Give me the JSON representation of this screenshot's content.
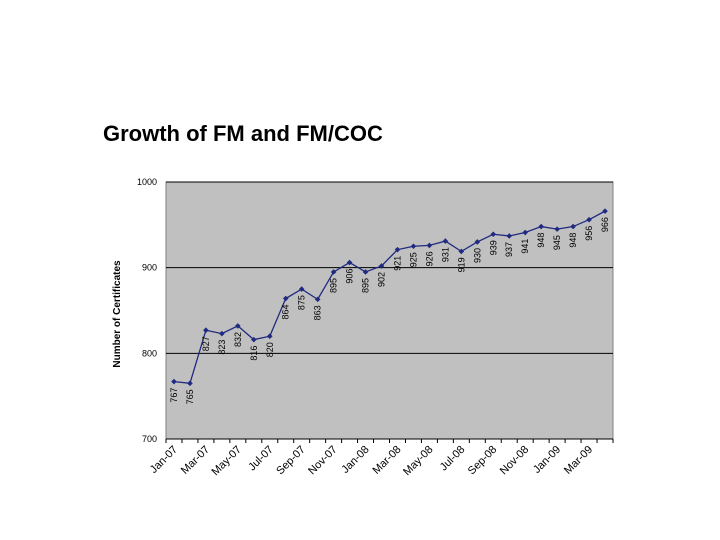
{
  "slide": {
    "title": "Growth of FM and FM/COC"
  },
  "chart_data": {
    "type": "line",
    "title": "",
    "xlabel": "",
    "ylabel": "Number of Certificates",
    "ylim": [
      700,
      1000
    ],
    "yticks": [
      "700",
      "800",
      "900",
      "1000"
    ],
    "grid": "horizontal",
    "legend": "none",
    "categories": [
      "Jan-07",
      "Feb-07",
      "Mar-07",
      "Apr-07",
      "May-07",
      "Jun-07",
      "Jul-07",
      "Aug-07",
      "Sep-07",
      "Oct-07",
      "Nov-07",
      "Dec-07",
      "Jan-08",
      "Feb-08",
      "Mar-08",
      "Apr-08",
      "May-08",
      "Jun-08",
      "Jul-08",
      "Aug-08",
      "Sep-08",
      "Oct-08",
      "Nov-08",
      "Dec-08",
      "Jan-09",
      "Feb-09",
      "Mar-09",
      "Apr-09"
    ],
    "tick_labels": [
      "Jan-07",
      "Mar-07",
      "May-07",
      "Jul-07",
      "Sep-07",
      "Nov-07",
      "Jan-08",
      "Mar-08",
      "May-08",
      "Jul-08",
      "Sep-08",
      "Nov-08",
      "Jan-09",
      "Mar-09"
    ],
    "series": [
      {
        "values": [
          767,
          765,
          827,
          823,
          832,
          816,
          820,
          864,
          875,
          863,
          895,
          906,
          895,
          902,
          921,
          925,
          926,
          931,
          919,
          930,
          939,
          937,
          941,
          948,
          945,
          948,
          956,
          966
        ],
        "labels": [
          "767",
          "765",
          "827",
          "823",
          "832",
          "816",
          "820",
          "864",
          "875",
          "863",
          "895",
          "906",
          "895",
          "902",
          "921",
          "925",
          "926",
          "931",
          "919",
          "930",
          "939",
          "937",
          "941",
          "948",
          "945",
          "948",
          "956",
          "966"
        ]
      }
    ],
    "colors": {
      "plot_bg": "#c0c0c0",
      "line": "#1f2a80",
      "grid": "#000000"
    }
  }
}
